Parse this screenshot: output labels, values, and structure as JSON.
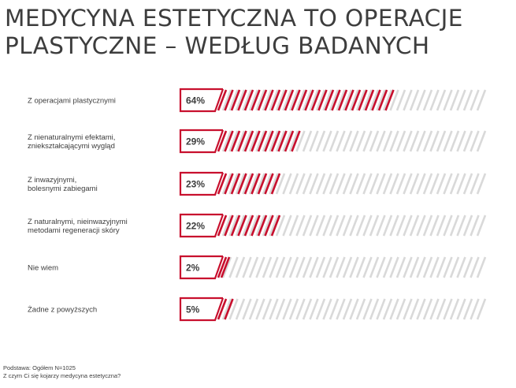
{
  "title_lines": [
    "MEDYCYNA ESTETYCZNA TO OPERACJE",
    "PLASTYCZNE – WEDŁUG BADANYCH"
  ],
  "footnote": {
    "base": "Podstawa: Ogółem N=1025",
    "question": "Z czym Ci się kojarzy medycyna estetyczna?"
  },
  "colors": {
    "accent": "#c8102e",
    "track": "#d9d9d9",
    "text": "#3d3d3d"
  },
  "chart_data": {
    "type": "bar",
    "orientation": "horizontal",
    "value_unit": "%",
    "xlim": [
      0,
      100
    ],
    "categories": [
      [
        "Z operacjami plastycznymi"
      ],
      [
        "Z nienaturalnymi efektami,",
        "zniekształcającymi wygląd"
      ],
      [
        "Z inwazyjnymi,",
        "bolesnymi zabiegami"
      ],
      [
        "Z naturalnymi, nieinwazyjnymi",
        "metodami regeneracji skóry"
      ],
      [
        "Nie wiem"
      ],
      [
        "Żadne z powyższych"
      ]
    ],
    "values": [
      64,
      29,
      23,
      22,
      2,
      5
    ],
    "value_labels": [
      "64%",
      "29%",
      "23%",
      "22%",
      "2%",
      "5%"
    ]
  }
}
